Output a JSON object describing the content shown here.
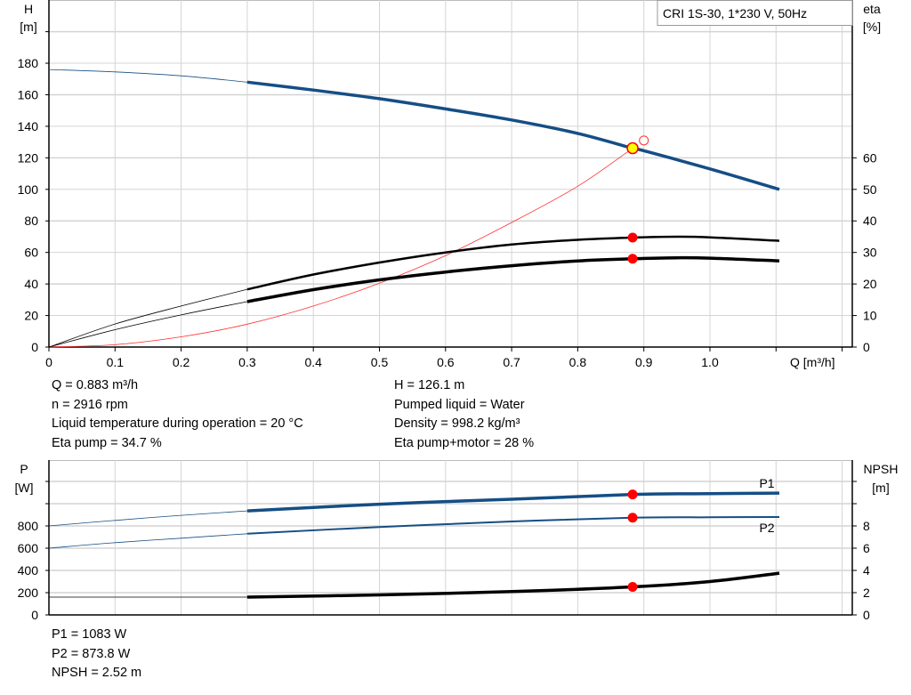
{
  "colors": {
    "head": "#154e85",
    "power": "#154e85",
    "efficiency": "#000000",
    "npsh": "#000000",
    "system_curve": "#ff3030",
    "duty_point": "#ff0000",
    "duty_point_fill": "#ffff00",
    "grid": "#d4d4d4"
  },
  "chart_data": [
    {
      "type": "line",
      "title": "CRI 1S-30, 1*230 V, 50Hz",
      "xlabel": "Q [m³/h]",
      "ylabel": "H\n[m]",
      "ylabel_left_lines": [
        "H",
        "[m]"
      ],
      "ylabel_right_lines": [
        "eta",
        "[%]"
      ],
      "xlim": [
        0,
        1.2
      ],
      "ylim": [
        0,
        220
      ],
      "ylim_right": [
        0,
        110
      ],
      "x_ticks": [
        "0",
        "0.1",
        "0.2",
        "0.3",
        "0.4",
        "0.5",
        "0.6",
        "0.7",
        "0.8",
        "0.9",
        "1.0"
      ],
      "y_ticks": [
        "0",
        "20",
        "40",
        "60",
        "80",
        "100",
        "120",
        "140",
        "160",
        "180"
      ],
      "y_ticks_right": [
        "0",
        "10",
        "20",
        "30",
        "40",
        "50",
        "60"
      ],
      "grid": true,
      "legend": "top-right",
      "series": [
        {
          "key": "head",
          "axis": "left",
          "x": [
            0,
            0.1,
            0.2,
            0.3,
            0.4,
            0.5,
            0.6,
            0.7,
            0.8,
            0.883,
            0.9,
            1.0,
            1.105
          ],
          "y": [
            176,
            174.5,
            172,
            168,
            163,
            157.5,
            151,
            144,
            135.5,
            126.1,
            124.5,
            113,
            100
          ],
          "thin_until": 0.3
        },
        {
          "key": "eta-pump",
          "axis": "right",
          "x": [
            0,
            0.1,
            0.2,
            0.3,
            0.4,
            0.5,
            0.6,
            0.7,
            0.8,
            0.883,
            0.95,
            1.0,
            1.105
          ],
          "y": [
            0,
            7.3,
            13,
            18.3,
            23,
            26.8,
            30,
            32.5,
            34,
            34.7,
            35,
            34.8,
            33.7
          ],
          "thin_until": 0.3
        },
        {
          "key": "eta-pump-motor",
          "axis": "right",
          "x": [
            0,
            0.1,
            0.2,
            0.3,
            0.4,
            0.5,
            0.6,
            0.7,
            0.8,
            0.883,
            0.95,
            1.0,
            1.105
          ],
          "y": [
            0,
            5.5,
            10.2,
            14.4,
            18.2,
            21.3,
            23.8,
            25.8,
            27.3,
            28,
            28.3,
            28.2,
            27.3
          ],
          "thin_until": 0.3
        },
        {
          "key": "system-curve",
          "axis": "left",
          "x": [
            0,
            0.1,
            0.2,
            0.3,
            0.4,
            0.5,
            0.6,
            0.7,
            0.8,
            0.883
          ],
          "y": [
            0,
            1.5,
            6.5,
            14.5,
            26,
            40.5,
            58,
            79,
            102,
            126.1
          ]
        }
      ],
      "duty_point": {
        "Q": 0.883,
        "H": 126.1,
        "eta_pump": 34.7,
        "eta_pump_motor": 28
      },
      "requested_point": {
        "Q": 0.9,
        "H": 131
      }
    },
    {
      "type": "line",
      "ylabel_left_lines": [
        "P",
        "[W]"
      ],
      "ylabel_right_lines": [
        "NPSH",
        "[m]"
      ],
      "xlim": [
        0,
        1.2
      ],
      "ylim": [
        0,
        1400
      ],
      "ylim_right": [
        0,
        14
      ],
      "y_ticks": [
        "0",
        "200",
        "400",
        "600",
        "800"
      ],
      "y_ticks_right": [
        "0",
        "2",
        "4",
        "6",
        "8"
      ],
      "grid": true,
      "series": [
        {
          "key": "p1",
          "name": "P1",
          "axis": "left",
          "x": [
            0,
            0.1,
            0.2,
            0.3,
            0.5,
            0.7,
            0.883,
            1.0,
            1.105
          ],
          "y": [
            800,
            850,
            895,
            935,
            995,
            1040,
            1083,
            1090,
            1095
          ],
          "thin_until": 0.3
        },
        {
          "key": "p2",
          "name": "P2",
          "axis": "left",
          "x": [
            0,
            0.1,
            0.2,
            0.3,
            0.5,
            0.7,
            0.883,
            1.0,
            1.105
          ],
          "y": [
            600,
            650,
            690,
            730,
            790,
            840,
            873.8,
            878,
            880
          ],
          "thin_until": 0.3
        },
        {
          "key": "npsh",
          "axis": "right",
          "x": [
            0,
            0.1,
            0.3,
            0.5,
            0.7,
            0.883,
            1.0,
            1.105
          ],
          "y": [
            1.6,
            1.6,
            1.6,
            1.8,
            2.1,
            2.52,
            3.0,
            3.75
          ],
          "thin_until": 0.3
        }
      ],
      "duty_point": {
        "Q": 0.883,
        "P1": 1083,
        "P2": 873.8,
        "NPSH": 2.52
      }
    }
  ],
  "info_top": {
    "left": [
      "Q = 0.883 m³/h",
      "n = 2916 rpm",
      "Liquid temperature during operation = 20 °C",
      "Eta pump = 34.7 %"
    ],
    "right": [
      "H = 126.1 m",
      "Pumped liquid = Water",
      "Density = 998.2 kg/m³",
      "Eta pump+motor = 28 %"
    ]
  },
  "info_bottom": [
    "P1 = 1083 W",
    "P2 = 873.8 W",
    "NPSH = 2.52 m"
  ]
}
